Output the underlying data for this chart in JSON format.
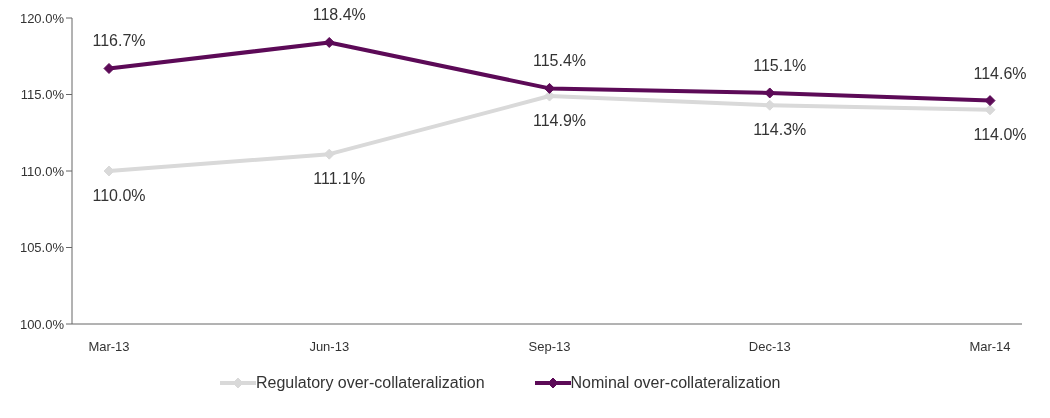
{
  "chart_data": {
    "type": "line",
    "categories": [
      "Mar-13",
      "Jun-13",
      "Sep-13",
      "Dec-13",
      "Mar-14"
    ],
    "series": [
      {
        "name": "Regulatory over-collateralization",
        "color": "#d9d9d9",
        "values": [
          110.0,
          111.1,
          114.9,
          114.3,
          114.0
        ],
        "value_labels": [
          "110.0%",
          "111.1%",
          "114.9%",
          "114.3%",
          "114.0%"
        ]
      },
      {
        "name": "Nominal over-collateralization",
        "color": "#5c0a57",
        "values": [
          116.7,
          118.4,
          115.4,
          115.1,
          114.6
        ],
        "value_labels": [
          "116.7%",
          "118.4%",
          "115.4%",
          "115.1%",
          "114.6%"
        ]
      }
    ],
    "ylim": [
      100,
      120
    ],
    "yticks": [
      {
        "value": 100,
        "label": "100.0%"
      },
      {
        "value": 105,
        "label": "105.0%"
      },
      {
        "value": 110,
        "label": "110.0%"
      },
      {
        "value": 115,
        "label": "115.0%"
      },
      {
        "value": 120,
        "label": "120.0%"
      }
    ],
    "grid": false,
    "legend": "bottom",
    "marker": "diamond",
    "line_style": "solid"
  }
}
